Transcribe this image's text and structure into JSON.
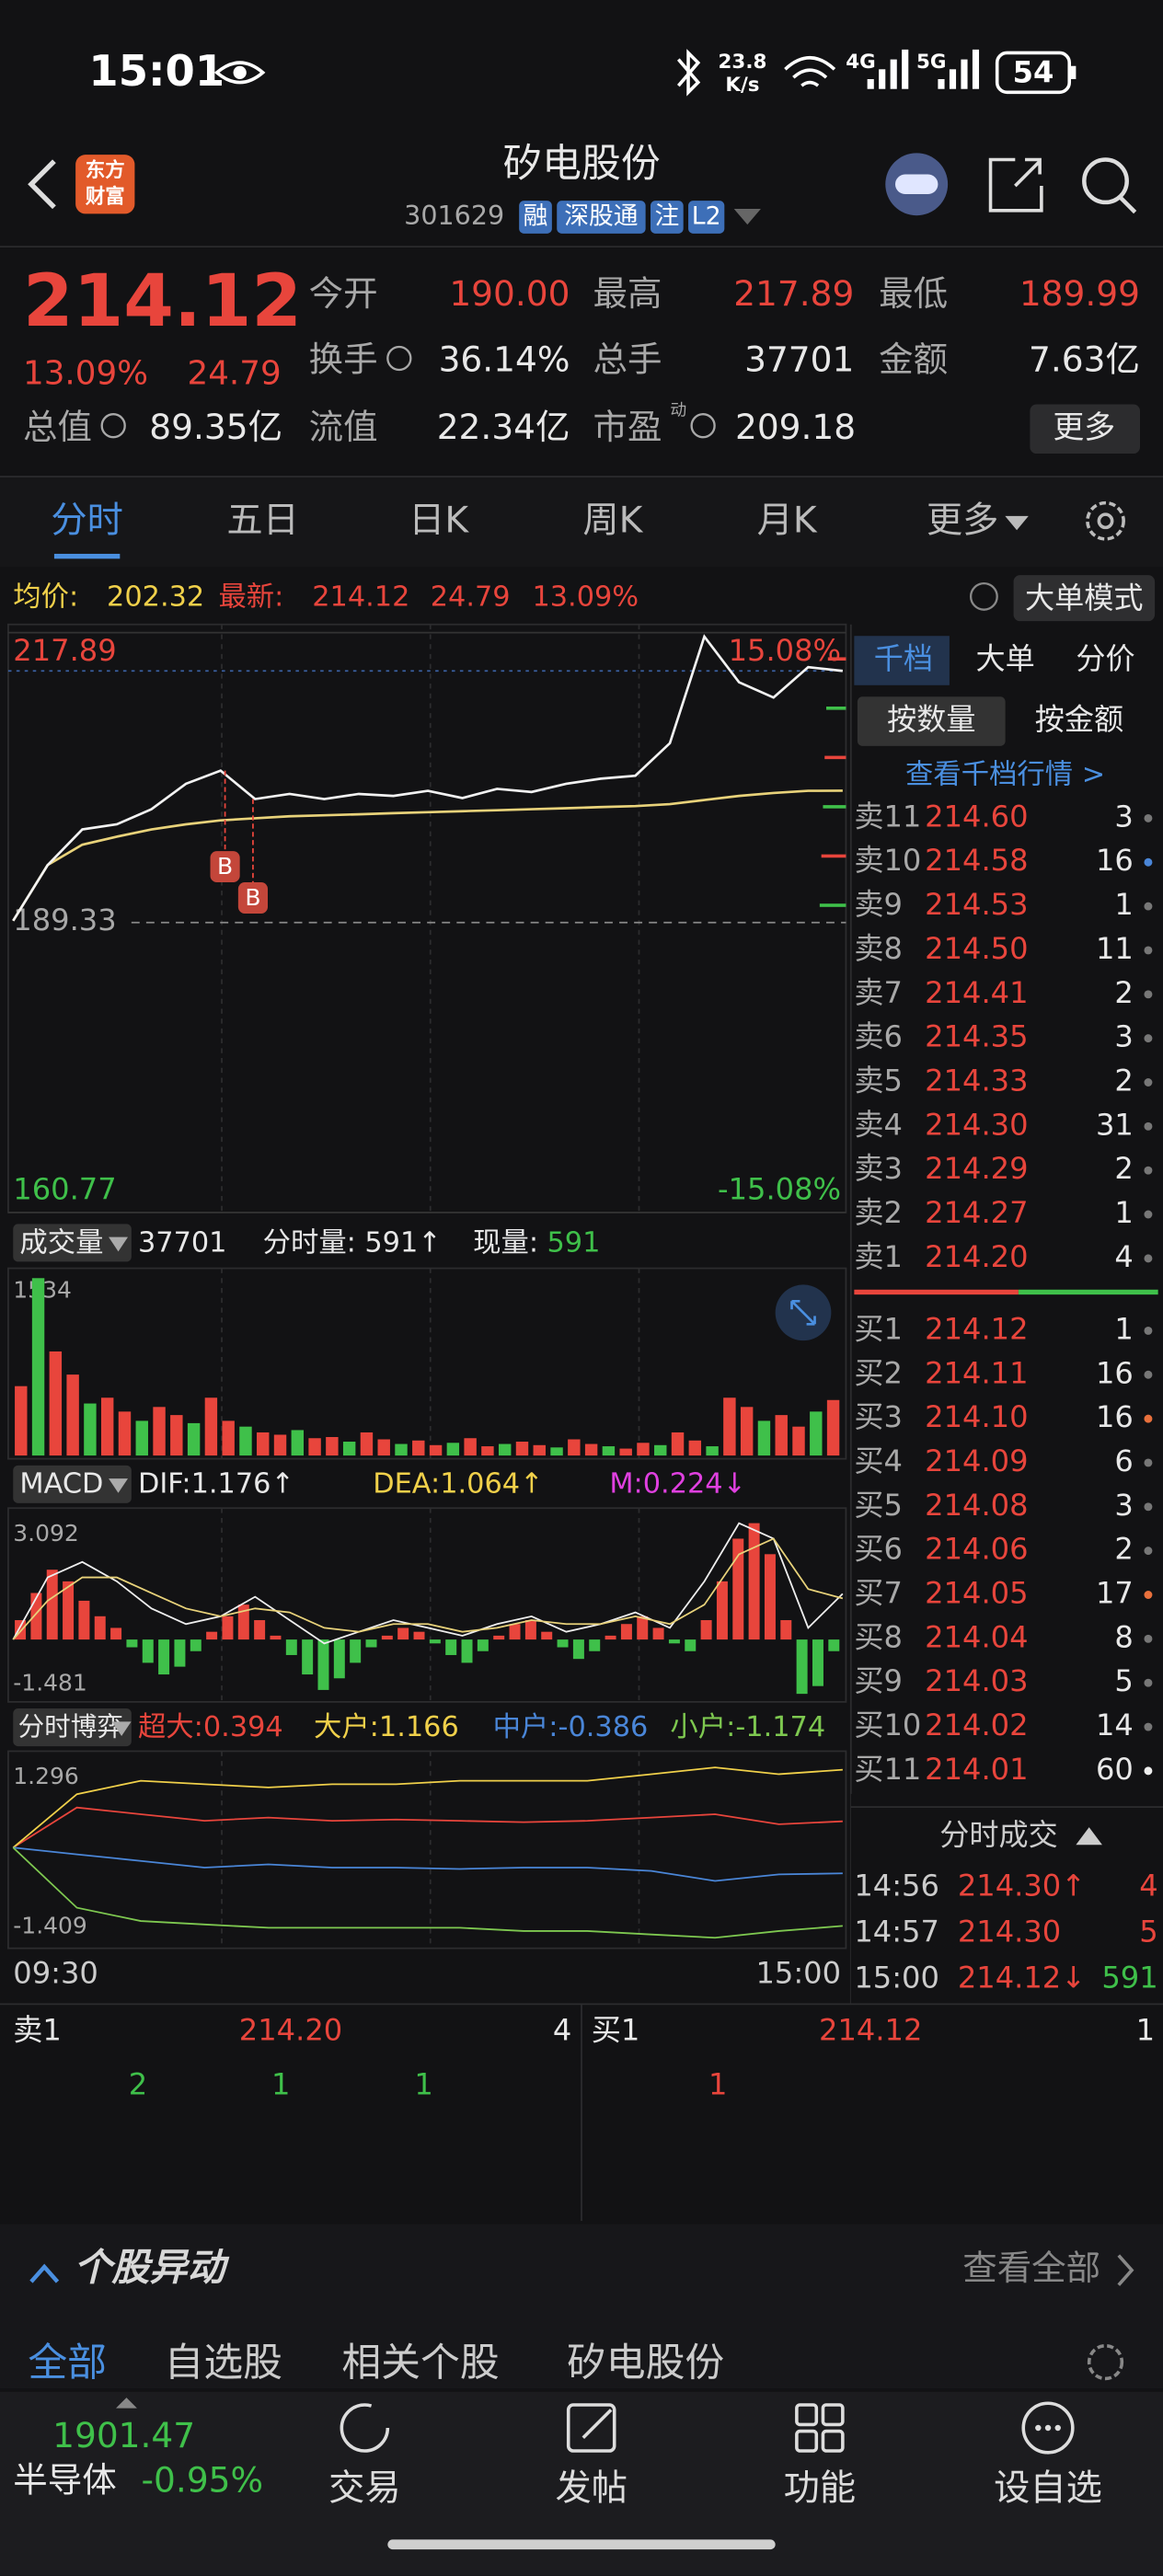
{
  "status": {
    "time": "15:01",
    "net_speed": "23.8",
    "net_unit": "K/s",
    "signal1": "4G",
    "signal2": "5G",
    "battery": "54"
  },
  "header": {
    "logo": [
      "东方",
      "财富"
    ],
    "title": "矽电股份",
    "code": "301629",
    "tags": [
      "融",
      "深股通",
      "注",
      "L2"
    ]
  },
  "quote": {
    "price": "214.12",
    "change_pct": "13.09%",
    "change": "24.79",
    "fields": [
      {
        "label": "今开",
        "value": "190.00"
      },
      {
        "label": "最高",
        "value": "217.89"
      },
      {
        "label": "最低",
        "value": "189.99"
      },
      {
        "label": "换手",
        "value": "36.14%"
      },
      {
        "label": "总手",
        "value": "37701"
      },
      {
        "label": "金额",
        "value": "7.63亿"
      },
      {
        "label": "总值",
        "value": "89.35亿"
      },
      {
        "label": "流值",
        "value": "22.34亿"
      },
      {
        "label": "市盈",
        "value": "209.18"
      }
    ],
    "pe_note": "动",
    "more": "更多"
  },
  "tabs": [
    "分时",
    "五日",
    "日K",
    "周K",
    "月K",
    "更多"
  ],
  "info": {
    "avg_label": "均价:",
    "avg": "202.32",
    "latest_label": "最新:",
    "latest": "214.12",
    "change": "24.79",
    "pct": "13.09%",
    "mode": "大单模式"
  },
  "intraday": {
    "high": 217.89,
    "high_pct": "15.08%",
    "prev_close": 189.33,
    "low": 160.77,
    "low_pct": "-15.08%",
    "price": [
      189.5,
      195,
      198.5,
      199,
      200.5,
      203,
      204.3,
      201.5,
      202,
      201.5,
      202,
      201.8,
      202.3,
      201.6,
      202.5,
      202.2,
      203,
      203.5,
      203.8,
      207,
      217.5,
      213,
      211.5,
      214.5,
      214.12
    ],
    "avg": [
      189.5,
      195,
      197,
      197.8,
      198.5,
      199,
      199.4,
      199.6,
      199.8,
      199.9,
      200,
      200.1,
      200.2,
      200.3,
      200.4,
      200.5,
      200.6,
      200.7,
      200.8,
      201,
      201.4,
      201.8,
      202.1,
      202.3,
      202.32
    ],
    "markers": [
      "B",
      "B"
    ]
  },
  "volume": {
    "label": "成交量",
    "total": "37701",
    "minute_label": "分时量:",
    "minute": "591↑",
    "current_label": "现量:",
    "current": "591",
    "max": 1534,
    "bars": [
      600,
      1534,
      900,
      700,
      450,
      500,
      380,
      300,
      420,
      350,
      280,
      500,
      300,
      250,
      200,
      180,
      220,
      150,
      160,
      120,
      200,
      140,
      100,
      130,
      90,
      110,
      150,
      80,
      100,
      120,
      90,
      70,
      140,
      100,
      80,
      60,
      110,
      90,
      200,
      130,
      80,
      500,
      420,
      300,
      350,
      250,
      380,
      480
    ]
  },
  "macd": {
    "label": "MACD",
    "dif": "DIF:1.176↑",
    "dea": "DEA:1.064↑",
    "m": "M:0.224↓",
    "max": 3.092,
    "min": -1.481,
    "bars": [
      0.5,
      1.2,
      1.8,
      1.5,
      1.0,
      0.6,
      0.3,
      -0.2,
      -0.6,
      -0.9,
      -0.7,
      -0.3,
      0.2,
      0.6,
      0.9,
      0.5,
      0.1,
      -0.4,
      -0.9,
      -1.3,
      -1.0,
      -0.6,
      -0.2,
      0.1,
      0.3,
      0.2,
      -0.1,
      -0.4,
      -0.6,
      -0.3,
      0.1,
      0.4,
      0.5,
      0.2,
      -0.2,
      -0.5,
      -0.3,
      0.1,
      0.4,
      0.6,
      0.3,
      -0.1,
      -0.3,
      0.5,
      1.5,
      2.6,
      3.0,
      2.2,
      0.5,
      -1.4,
      -1.2,
      -0.3
    ],
    "dif_line": [
      0,
      1.6,
      2.0,
      1.5,
      0.8,
      0.4,
      0.6,
      1.1,
      0.5,
      -0.1,
      0.2,
      0.5,
      0.3,
      0.1,
      0.4,
      0.6,
      0.2,
      0.4,
      0.7,
      0.3,
      1.5,
      3.0,
      2.6,
      0.3,
      1.18
    ],
    "dea_line": [
      0,
      1.0,
      1.6,
      1.6,
      1.2,
      0.8,
      0.6,
      0.8,
      0.7,
      0.3,
      0.2,
      0.4,
      0.4,
      0.2,
      0.3,
      0.5,
      0.4,
      0.4,
      0.6,
      0.4,
      0.9,
      2.2,
      2.6,
      1.3,
      1.06
    ]
  },
  "game": {
    "label": "分时博弈",
    "items": [
      "超大:0.394",
      "大户:1.166",
      "中户:-0.386",
      "小户:-1.174"
    ],
    "max": 1.296,
    "min": -1.409,
    "lines": [
      [
        0,
        0.6,
        0.5,
        0.4,
        0.45,
        0.4,
        0.42,
        0.4,
        0.38,
        0.4,
        0.45,
        0.5,
        0.35,
        0.394
      ],
      [
        0,
        0.8,
        1.0,
        0.95,
        0.9,
        0.95,
        0.95,
        1.0,
        1.0,
        1.0,
        1.1,
        1.2,
        1.1,
        1.166
      ],
      [
        0,
        -0.1,
        -0.2,
        -0.3,
        -0.25,
        -0.3,
        -0.3,
        -0.32,
        -0.3,
        -0.3,
        -0.35,
        -0.5,
        -0.4,
        -0.386
      ],
      [
        0,
        -0.9,
        -1.1,
        -1.15,
        -1.2,
        -1.2,
        -1.2,
        -1.2,
        -1.25,
        -1.25,
        -1.3,
        -1.35,
        -1.25,
        -1.174
      ]
    ]
  },
  "time_axis": [
    "09:30",
    "15:00"
  ],
  "orderbook": {
    "tabs": [
      "千档",
      "大单",
      "分价"
    ],
    "subtabs": [
      "按数量",
      "按金额"
    ],
    "link": "查看千档行情 >",
    "asks": [
      [
        "卖11",
        "214.60",
        "3"
      ],
      [
        "卖10",
        "214.58",
        "16"
      ],
      [
        "卖9",
        "214.53",
        "1"
      ],
      [
        "卖8",
        "214.50",
        "11"
      ],
      [
        "卖7",
        "214.41",
        "2"
      ],
      [
        "卖6",
        "214.35",
        "3"
      ],
      [
        "卖5",
        "214.33",
        "2"
      ],
      [
        "卖4",
        "214.30",
        "31"
      ],
      [
        "卖3",
        "214.29",
        "2"
      ],
      [
        "卖2",
        "214.27",
        "1"
      ],
      [
        "卖1",
        "214.20",
        "4"
      ]
    ],
    "bids": [
      [
        "买1",
        "214.12",
        "1"
      ],
      [
        "买2",
        "214.11",
        "16"
      ],
      [
        "买3",
        "214.10",
        "16"
      ],
      [
        "买4",
        "214.09",
        "6"
      ],
      [
        "买5",
        "214.08",
        "3"
      ],
      [
        "买6",
        "214.06",
        "2"
      ],
      [
        "买7",
        "214.05",
        "17"
      ],
      [
        "买8",
        "214.04",
        "8"
      ],
      [
        "买9",
        "214.03",
        "5"
      ],
      [
        "买10",
        "214.02",
        "14"
      ],
      [
        "买11",
        "214.01",
        "60"
      ]
    ],
    "trades_title": "分时成交",
    "trades": [
      [
        "14:56",
        "214.30↑",
        "4"
      ],
      [
        "14:57",
        "214.30",
        "5"
      ],
      [
        "15:00",
        "214.12↓",
        "591"
      ]
    ]
  },
  "bottom_quote": {
    "ask_label": "卖1",
    "ask_price": "214.20",
    "ask_qty": "4",
    "bid_label": "买1",
    "bid_price": "214.12",
    "bid_qty": "1",
    "ask_orders": [
      "2",
      "1",
      "1"
    ],
    "bid_orders": [
      "1"
    ]
  },
  "news": {
    "title": "个股异动",
    "view_all": "查看全部",
    "tabs": [
      "全部",
      "自选股",
      "相关个股",
      "矽电股份"
    ]
  },
  "nav": {
    "index_value": "1901.47",
    "index_name": "半导体",
    "index_change": "-0.95%",
    "items": [
      "交易",
      "发帖",
      "功能",
      "设自选"
    ]
  }
}
